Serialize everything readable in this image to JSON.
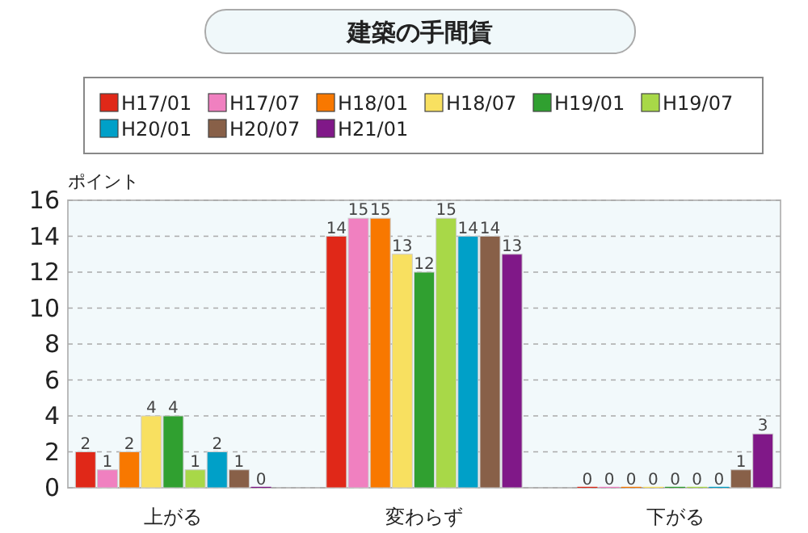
{
  "chart_data": {
    "type": "bar",
    "title": "建築の手間賃",
    "ylabel": "ポイント",
    "categories": [
      "上がる",
      "変わらず",
      "下がる"
    ],
    "series": [
      {
        "name": "H17/01",
        "color": "#e02818",
        "values": [
          2,
          14,
          0
        ]
      },
      {
        "name": "H17/07",
        "color": "#f080c0",
        "values": [
          1,
          15,
          0
        ]
      },
      {
        "name": "H18/01",
        "color": "#f87800",
        "values": [
          2,
          15,
          0
        ]
      },
      {
        "name": "H18/07",
        "color": "#f8e060",
        "values": [
          4,
          13,
          0
        ]
      },
      {
        "name": "H19/01",
        "color": "#30a030",
        "values": [
          4,
          12,
          0
        ]
      },
      {
        "name": "H19/07",
        "color": "#a8d848",
        "values": [
          1,
          15,
          0
        ]
      },
      {
        "name": "H20/01",
        "color": "#00a0c8",
        "values": [
          2,
          14,
          0
        ]
      },
      {
        "name": "H20/07",
        "color": "#886048",
        "values": [
          1,
          14,
          1
        ]
      },
      {
        "name": "H21/01",
        "color": "#801888",
        "values": [
          0,
          13,
          3
        ]
      }
    ],
    "ylim": [
      0,
      16
    ],
    "yticks": [
      0,
      2,
      4,
      6,
      8,
      10,
      12,
      14,
      16
    ],
    "grid": "y",
    "legend": "top",
    "data_labels": true
  }
}
